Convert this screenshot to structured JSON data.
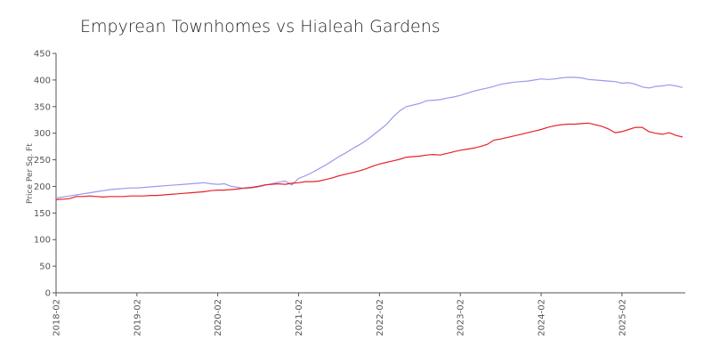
{
  "chart_data": {
    "type": "line",
    "title": "Empyrean Townhomes vs Hialeah Gardens",
    "y_label": "Price Per Sq. Ft",
    "x": [
      "2018-02",
      "2018-03",
      "2018-04",
      "2018-05",
      "2018-06",
      "2018-07",
      "2018-08",
      "2018-09",
      "2018-10",
      "2018-11",
      "2018-12",
      "2019-01",
      "2019-02",
      "2019-03",
      "2019-04",
      "2019-05",
      "2019-06",
      "2019-07",
      "2019-08",
      "2019-09",
      "2019-10",
      "2019-11",
      "2019-12",
      "2020-01",
      "2020-02",
      "2020-03",
      "2020-04",
      "2020-05",
      "2020-06",
      "2020-07",
      "2020-08",
      "2020-09",
      "2020-10",
      "2020-11",
      "2020-12",
      "2021-01",
      "2021-02",
      "2021-03",
      "2021-04",
      "2021-05",
      "2021-06",
      "2021-07",
      "2021-08",
      "2021-09",
      "2021-10",
      "2021-11",
      "2021-12",
      "2022-01",
      "2022-02",
      "2022-03",
      "2022-04",
      "2022-05",
      "2022-06",
      "2022-07",
      "2022-08",
      "2022-09",
      "2022-10",
      "2022-11",
      "2022-12",
      "2023-01",
      "2023-02",
      "2023-03",
      "2023-04",
      "2023-05",
      "2023-06",
      "2023-07",
      "2023-08",
      "2023-09",
      "2023-10",
      "2023-11",
      "2023-12",
      "2024-01",
      "2024-02",
      "2024-03",
      "2024-04",
      "2024-05",
      "2024-06",
      "2024-07",
      "2024-08",
      "2024-09",
      "2024-10",
      "2024-11",
      "2024-12",
      "2025-01",
      "2025-02",
      "2025-03",
      "2025-04",
      "2025-05",
      "2025-06",
      "2025-07",
      "2025-08",
      "2025-09",
      "2025-10",
      "2025-11"
    ],
    "series": [
      {
        "color": "#9999ee",
        "values": [
          178,
          180,
          182,
          184,
          186,
          188,
          190,
          192,
          194,
          195,
          196,
          197,
          197,
          198,
          199,
          200,
          201,
          202,
          203,
          204,
          205,
          206,
          207,
          205,
          204,
          205,
          200,
          198,
          196,
          197,
          199,
          202,
          205,
          208,
          210,
          203,
          215,
          220,
          226,
          233,
          240,
          248,
          256,
          263,
          271,
          278,
          286,
          296,
          306,
          316,
          330,
          342,
          350,
          353,
          356,
          361,
          362,
          363,
          366,
          368,
          371,
          375,
          379,
          382,
          385,
          388,
          392,
          394,
          396,
          397,
          398,
          400,
          402,
          401,
          402,
          404,
          405,
          405,
          404,
          401,
          400,
          399,
          398,
          397,
          394,
          395,
          392,
          387,
          385,
          388,
          389,
          391,
          389,
          386
        ]
      },
      {
        "color": "#e8202a",
        "values": [
          175,
          176,
          177,
          181,
          181,
          182,
          181,
          180,
          181,
          181,
          181,
          182,
          182,
          182,
          183,
          183,
          184,
          185,
          186,
          187,
          188,
          189,
          190,
          192,
          193,
          193,
          194,
          195,
          197,
          198,
          200,
          203,
          204,
          205,
          204,
          206,
          207,
          209,
          209,
          210,
          213,
          216,
          220,
          223,
          226,
          229,
          233,
          238,
          242,
          245,
          248,
          251,
          255,
          256,
          257,
          259,
          260,
          259,
          262,
          265,
          268,
          270,
          272,
          275,
          279,
          287,
          289,
          292,
          295,
          298,
          301,
          304,
          307,
          311,
          314,
          316,
          317,
          317,
          318,
          319,
          316,
          313,
          308,
          301,
          303,
          307,
          311,
          311,
          303,
          300,
          298,
          301,
          296,
          293
        ]
      }
    ],
    "xticks": [
      "2018-02",
      "2019-02",
      "2020-02",
      "2021-02",
      "2022-02",
      "2023-02",
      "2024-02",
      "2025-02"
    ],
    "ylim": [
      0,
      450
    ],
    "yticks": [
      0,
      50,
      100,
      150,
      200,
      250,
      300,
      350,
      400,
      450
    ]
  }
}
